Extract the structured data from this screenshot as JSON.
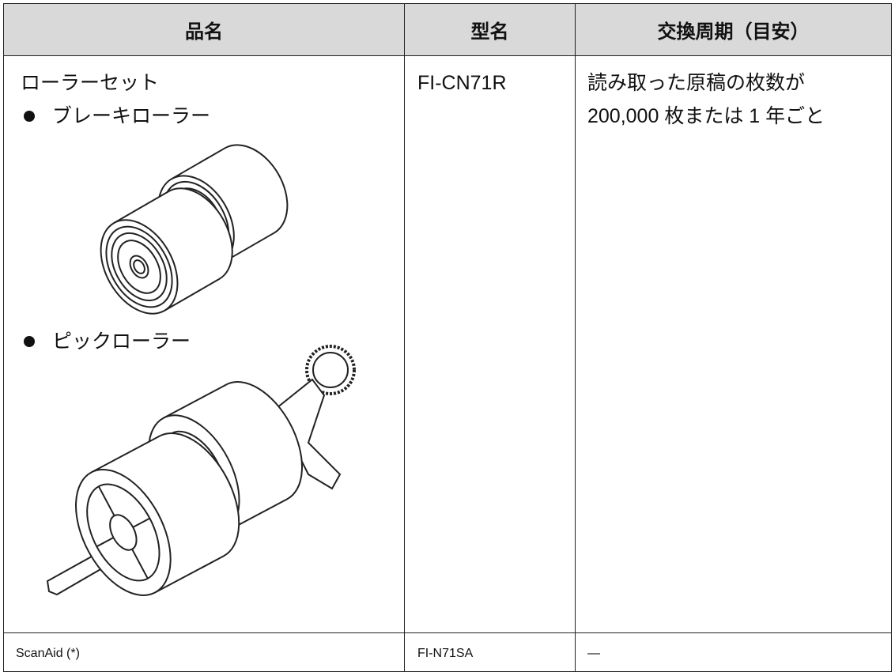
{
  "table": {
    "header": [
      "品名",
      "型名",
      "交換周期（目安）"
    ],
    "rows": [
      {
        "item": "ローラーセット",
        "bullets": [
          "ブレーキローラー",
          "ピックローラー"
        ],
        "model": "FI-CN71R",
        "cycle": [
          "読み取った原稿の枚数が",
          "200,000 枚または 1 年ごと"
        ]
      },
      {
        "item": "ScanAid (*)",
        "model": "FI-N71SA",
        "cycle": [
          "—"
        ]
      }
    ]
  }
}
